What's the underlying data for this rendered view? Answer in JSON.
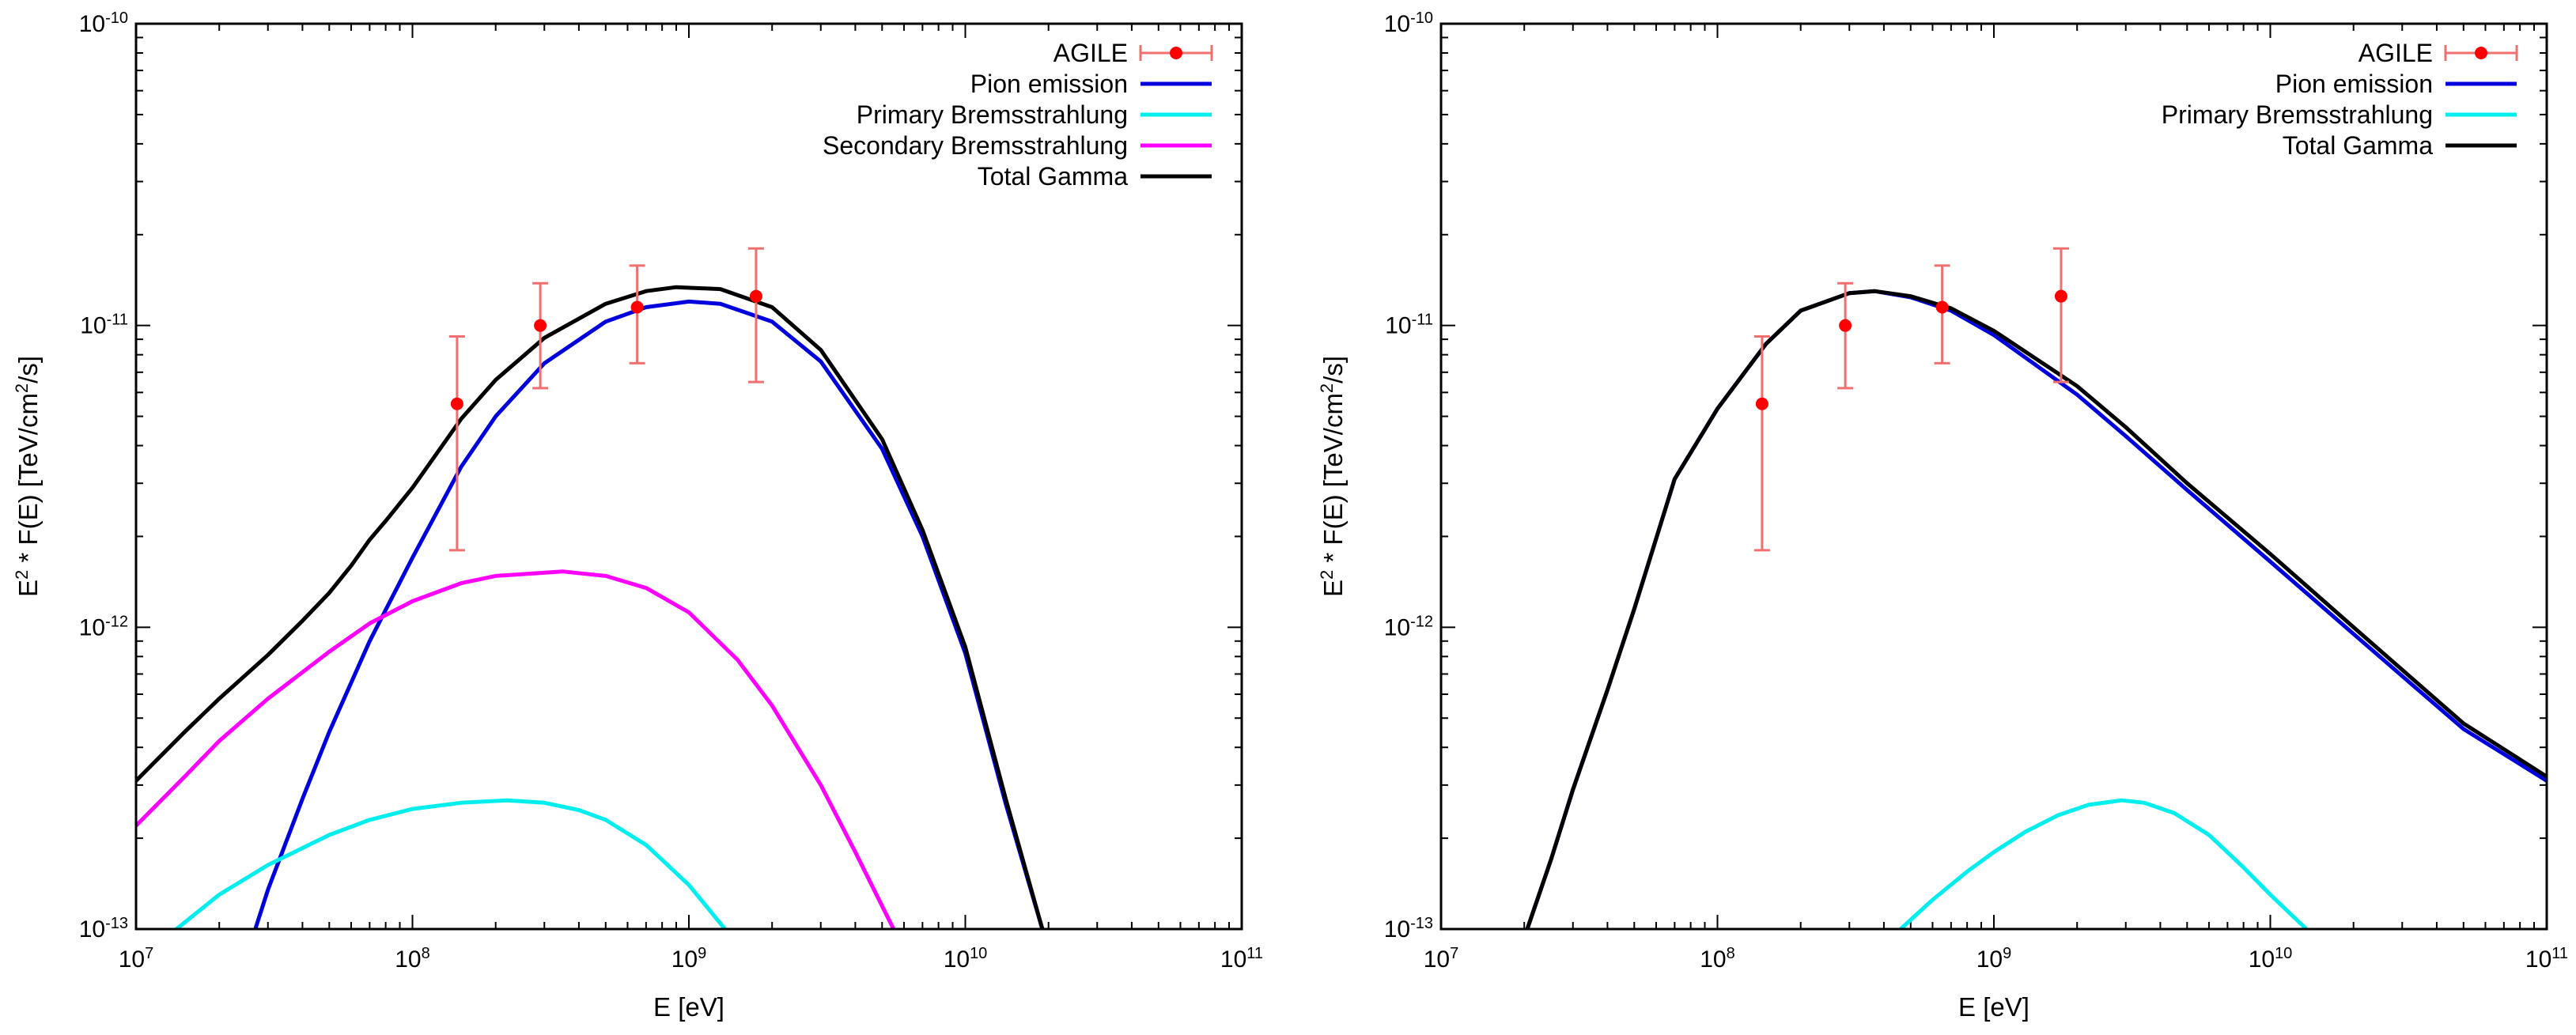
{
  "chart_data": [
    {
      "type": "line",
      "xlabel": "E [eV]",
      "ylabel": {
        "pre": "E",
        "sup": "2",
        "mid": " * F(E)  [TeV/cm",
        "sup2": "2",
        "post": "/s]"
      },
      "xscale": "log",
      "yscale": "log",
      "xlim": [
        10000000.0,
        100000000000.0
      ],
      "ylim": [
        1e-13,
        1e-10
      ],
      "x_ticks": [
        {
          "base": "10",
          "exp": "7",
          "value": 10000000.0
        },
        {
          "base": "10",
          "exp": "8",
          "value": 100000000.0
        },
        {
          "base": "10",
          "exp": "9",
          "value": 1000000000.0
        },
        {
          "base": "10",
          "exp": "10",
          "value": 10000000000.0
        },
        {
          "base": "10",
          "exp": "11",
          "value": 100000000000.0
        }
      ],
      "y_ticks": [
        {
          "base": "10",
          "exp": "-13",
          "value": 1e-13
        },
        {
          "base": "10",
          "exp": "-12",
          "value": 1e-12
        },
        {
          "base": "10",
          "exp": "-11",
          "value": 1e-11
        },
        {
          "base": "10",
          "exp": "-10",
          "value": 1e-10
        }
      ],
      "legend_position": "top-right",
      "data_points": {
        "name": "AGILE",
        "color": "#ff0000",
        "errorbar_color": "#f07070",
        "points": [
          {
            "x": 145000000.0,
            "y": 5.5e-12,
            "ylo": 1.8e-12,
            "yhi": 9.2e-12
          },
          {
            "x": 290000000.0,
            "y": 1e-11,
            "ylo": 6.2e-12,
            "yhi": 1.38e-11
          },
          {
            "x": 650000000.0,
            "y": 1.15e-11,
            "ylo": 7.5e-12,
            "yhi": 1.58e-11
          },
          {
            "x": 1750000000.0,
            "y": 1.25e-11,
            "ylo": 6.5e-12,
            "yhi": 1.8e-11
          }
        ]
      },
      "series": [
        {
          "name": "Pion emission",
          "color": "#0000dd",
          "x": [
            27000000.0,
            30000000.0,
            40000000.0,
            50000000.0,
            70000000.0,
            100000000.0,
            150000000.0,
            200000000.0,
            300000000.0,
            500000000.0,
            700000000.0,
            1000000000.0,
            1300000000.0,
            2000000000.0,
            3000000000.0,
            5000000000.0,
            7000000000.0,
            10000000000.0,
            14000000000.0,
            19000000000.0
          ],
          "y": [
            1e-13,
            1.35e-13,
            2.7e-13,
            4.5e-13,
            9e-13,
            1.7e-12,
            3.4e-12,
            5e-12,
            7.5e-12,
            1.03e-11,
            1.15e-11,
            1.2e-11,
            1.18e-11,
            1.03e-11,
            7.6e-12,
            3.9e-12,
            2e-12,
            8.2e-13,
            2.6e-13,
            1e-13
          ]
        },
        {
          "name": "Primary Bremsstrahlung",
          "color": "#00eeee",
          "x": [
            14000000.0,
            20000000.0,
            30000000.0,
            50000000.0,
            70000000.0,
            100000000.0,
            150000000.0,
            220000000.0,
            300000000.0,
            400000000.0,
            500000000.0,
            700000000.0,
            1000000000.0,
            1350000000.0
          ],
          "y": [
            1e-13,
            1.3e-13,
            1.63e-13,
            2.05e-13,
            2.3e-13,
            2.5e-13,
            2.62e-13,
            2.67e-13,
            2.62e-13,
            2.48e-13,
            2.3e-13,
            1.9e-13,
            1.4e-13,
            1e-13
          ]
        },
        {
          "name": "Secondary Bremsstrahlung",
          "color": "#ff00ff",
          "x": [
            10000000.0,
            15000000.0,
            20000000.0,
            30000000.0,
            50000000.0,
            70000000.0,
            100000000.0,
            150000000.0,
            200000000.0,
            350000000.0,
            500000000.0,
            700000000.0,
            1000000000.0,
            1500000000.0,
            2000000000.0,
            3000000000.0,
            4000000000.0,
            5500000000.0
          ],
          "y": [
            2.2e-13,
            3.2e-13,
            4.2e-13,
            5.8e-13,
            8.3e-13,
            1.03e-12,
            1.22e-12,
            1.4e-12,
            1.48e-12,
            1.53e-12,
            1.48e-12,
            1.35e-12,
            1.12e-12,
            7.8e-13,
            5.5e-13,
            3e-13,
            1.8e-13,
            1e-13
          ]
        },
        {
          "name": "Total Gamma",
          "color": "#000000",
          "x": [
            10000000.0,
            15000000.0,
            20000000.0,
            30000000.0,
            40000000.0,
            50000000.0,
            60000000.0,
            70000000.0,
            80000000.0,
            100000000.0,
            150000000.0,
            200000000.0,
            300000000.0,
            500000000.0,
            700000000.0,
            900000000.0,
            1300000000.0,
            2000000000.0,
            3000000000.0,
            5000000000.0,
            7000000000.0,
            10000000000.0,
            14000000000.0,
            19000000000.0
          ],
          "y": [
            3.1e-13,
            4.5e-13,
            5.8e-13,
            8.1e-13,
            1.05e-12,
            1.3e-12,
            1.6e-12,
            1.95e-12,
            2.25e-12,
            2.9e-12,
            4.9e-12,
            6.6e-12,
            9.1e-12,
            1.18e-11,
            1.3e-11,
            1.34e-11,
            1.32e-11,
            1.15e-11,
            8.3e-12,
            4.2e-12,
            2.1e-12,
            8.6e-13,
            2.7e-13,
            1e-13
          ]
        }
      ]
    },
    {
      "type": "line",
      "xlabel": "E [eV]",
      "ylabel": {
        "pre": "E",
        "sup": "2",
        "mid": " * F(E)  [TeV/cm",
        "sup2": "2",
        "post": "/s]"
      },
      "xscale": "log",
      "yscale": "log",
      "xlim": [
        10000000.0,
        100000000000.0
      ],
      "ylim": [
        1e-13,
        1e-10
      ],
      "x_ticks": [
        {
          "base": "10",
          "exp": "7",
          "value": 10000000.0
        },
        {
          "base": "10",
          "exp": "8",
          "value": 100000000.0
        },
        {
          "base": "10",
          "exp": "9",
          "value": 1000000000.0
        },
        {
          "base": "10",
          "exp": "10",
          "value": 10000000000.0
        },
        {
          "base": "10",
          "exp": "11",
          "value": 100000000000.0
        }
      ],
      "y_ticks": [
        {
          "base": "10",
          "exp": "-13",
          "value": 1e-13
        },
        {
          "base": "10",
          "exp": "-12",
          "value": 1e-12
        },
        {
          "base": "10",
          "exp": "-11",
          "value": 1e-11
        },
        {
          "base": "10",
          "exp": "-10",
          "value": 1e-10
        }
      ],
      "legend_position": "top-right",
      "data_points": {
        "name": "AGILE",
        "color": "#ff0000",
        "errorbar_color": "#f07070",
        "points": [
          {
            "x": 145000000.0,
            "y": 5.5e-12,
            "ylo": 1.8e-12,
            "yhi": 9.2e-12
          },
          {
            "x": 290000000.0,
            "y": 1e-11,
            "ylo": 6.2e-12,
            "yhi": 1.38e-11
          },
          {
            "x": 650000000.0,
            "y": 1.15e-11,
            "ylo": 7.5e-12,
            "yhi": 1.58e-11
          },
          {
            "x": 1750000000.0,
            "y": 1.25e-11,
            "ylo": 6.5e-12,
            "yhi": 1.8e-11
          }
        ]
      },
      "series": [
        {
          "name": "Pion emission",
          "color": "#0000dd",
          "x": [
            20500000.0,
            25000000.0,
            30000000.0,
            40000000.0,
            50000000.0,
            70000000.0,
            100000000.0,
            150000000.0,
            200000000.0,
            300000000.0,
            370000000.0,
            500000000.0,
            700000000.0,
            1000000000.0,
            2000000000.0,
            3000000000.0,
            5000000000.0,
            10000000000.0,
            20000000000.0,
            50000000000.0,
            100000000000.0
          ],
          "y": [
            1e-13,
            1.7e-13,
            2.9e-13,
            6.2e-13,
            1.15e-12,
            3.1e-12,
            5.3e-12,
            8.7e-12,
            1.12e-11,
            1.28e-11,
            1.3e-11,
            1.24e-11,
            1.12e-11,
            9.3e-12,
            5.9e-12,
            4.3e-12,
            2.85e-12,
            1.65e-12,
            9.5e-13,
            4.6e-13,
            3.1e-13
          ]
        },
        {
          "name": "Primary Bremsstrahlung",
          "color": "#00eeee",
          "x": [
            460000000.0,
            600000000.0,
            800000000.0,
            1000000000.0,
            1300000000.0,
            1700000000.0,
            2200000000.0,
            2900000000.0,
            3500000000.0,
            4500000000.0,
            6000000000.0,
            8000000000.0,
            10000000000.0,
            13500000000.0
          ],
          "y": [
            1e-13,
            1.25e-13,
            1.55e-13,
            1.8e-13,
            2.1e-13,
            2.38e-13,
            2.58e-13,
            2.67e-13,
            2.62e-13,
            2.42e-13,
            2.05e-13,
            1.6e-13,
            1.3e-13,
            1e-13
          ]
        },
        {
          "name": "Total Gamma",
          "color": "#000000",
          "x": [
            20500000.0,
            25000000.0,
            30000000.0,
            40000000.0,
            50000000.0,
            70000000.0,
            100000000.0,
            150000000.0,
            200000000.0,
            300000000.0,
            370000000.0,
            500000000.0,
            700000000.0,
            1000000000.0,
            2000000000.0,
            3000000000.0,
            5000000000.0,
            10000000000.0,
            20000000000.0,
            50000000000.0,
            100000000000.0
          ],
          "y": [
            1e-13,
            1.7e-13,
            2.9e-13,
            6.2e-13,
            1.15e-12,
            3.1e-12,
            5.3e-12,
            8.7e-12,
            1.12e-11,
            1.28e-11,
            1.3e-11,
            1.25e-11,
            1.14e-11,
            9.6e-12,
            6.3e-12,
            4.6e-12,
            3e-12,
            1.75e-12,
            1e-12,
            4.8e-13,
            3.2e-13
          ]
        }
      ]
    }
  ]
}
